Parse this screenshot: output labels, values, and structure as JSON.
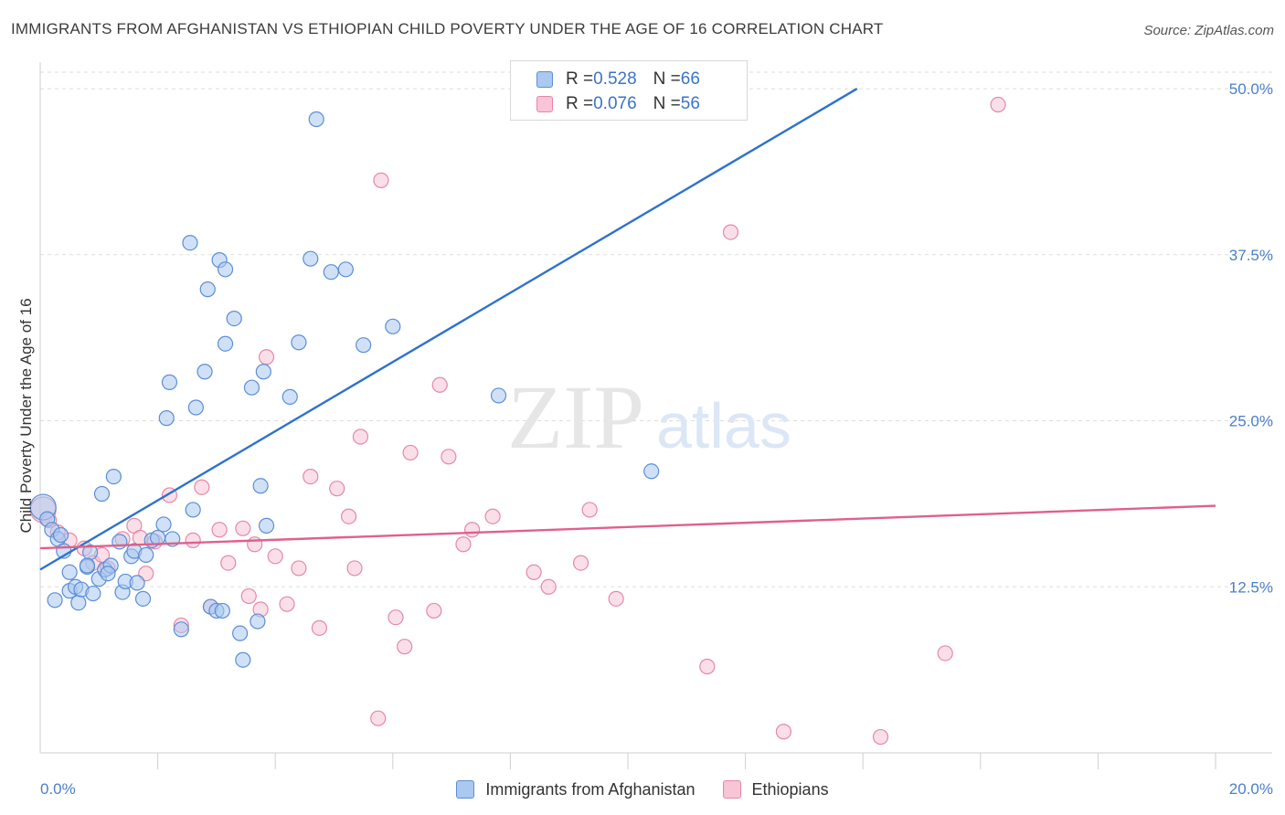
{
  "title": "IMMIGRANTS FROM AFGHANISTAN VS ETHIOPIAN CHILD POVERTY UNDER THE AGE OF 16 CORRELATION CHART",
  "source": "Source: ZipAtlas.com",
  "watermark": {
    "zip": "ZIP",
    "atlas": "atlas"
  },
  "colors": {
    "afghan_fill": "#aac8f0",
    "afghan_stroke": "#5b8ed6",
    "afghan_line": "#2e72cc",
    "ethiopian_fill": "#f8c4d6",
    "ethiopian_stroke": "#e588a8",
    "ethiopian_line": "#e0608c",
    "tick_text": "#4a7fc8",
    "grid": "#dddddd"
  },
  "legend": {
    "rows": [
      {
        "r_label": "R = ",
        "r_value": "0.528",
        "n_label": "N = ",
        "n_value": "66"
      },
      {
        "r_label": "R = ",
        "r_value": "0.076",
        "n_label": "N = ",
        "n_value": "56"
      }
    ]
  },
  "bottom_legend": {
    "items": [
      "Immigrants from Afghanistan",
      "Ethiopians"
    ]
  },
  "chart_data": {
    "type": "scatter",
    "ylabel": "Child Poverty Under the Age of 16",
    "xlim": [
      0,
      20
    ],
    "ylim": [
      0,
      52
    ],
    "x_tick_labels": [
      {
        "value": 0,
        "label": "0.0%"
      },
      {
        "value": 20,
        "label": "20.0%"
      }
    ],
    "x_minor_ticks": [
      2,
      4,
      6,
      8,
      10,
      12,
      14,
      16,
      18,
      20
    ],
    "y_ticks": [
      {
        "value": 12.5,
        "label": "12.5%"
      },
      {
        "value": 25,
        "label": "25.0%"
      },
      {
        "value": 37.5,
        "label": "37.5%"
      },
      {
        "value": 50,
        "label": "50.0%"
      }
    ],
    "grid": true,
    "series": [
      {
        "name": "Immigrants from Afghanistan",
        "trend": {
          "x0": 0,
          "y0": 13.8,
          "x1": 13.9,
          "y1": 50.0
        },
        "points": [
          [
            0.05,
            18.5
          ],
          [
            0.12,
            17.6
          ],
          [
            0.2,
            16.8
          ],
          [
            0.3,
            16.1
          ],
          [
            0.4,
            15.2
          ],
          [
            0.5,
            13.6
          ],
          [
            0.25,
            11.5
          ],
          [
            0.5,
            12.2
          ],
          [
            0.6,
            12.5
          ],
          [
            0.65,
            11.3
          ],
          [
            0.7,
            12.3
          ],
          [
            0.8,
            14.0
          ],
          [
            0.85,
            15.1
          ],
          [
            0.9,
            12.0
          ],
          [
            1.0,
            13.1
          ],
          [
            1.05,
            19.5
          ],
          [
            1.1,
            13.8
          ],
          [
            1.2,
            14.1
          ],
          [
            1.25,
            20.8
          ],
          [
            1.35,
            15.9
          ],
          [
            1.4,
            12.1
          ],
          [
            1.45,
            12.9
          ],
          [
            1.55,
            14.8
          ],
          [
            1.6,
            15.2
          ],
          [
            1.65,
            12.8
          ],
          [
            1.75,
            11.6
          ],
          [
            1.8,
            14.9
          ],
          [
            1.9,
            16.0
          ],
          [
            2.0,
            16.2
          ],
          [
            2.1,
            17.2
          ],
          [
            2.15,
            25.2
          ],
          [
            2.2,
            27.9
          ],
          [
            2.25,
            16.1
          ],
          [
            2.4,
            9.3
          ],
          [
            2.55,
            38.4
          ],
          [
            2.6,
            18.3
          ],
          [
            2.65,
            26.0
          ],
          [
            2.8,
            28.7
          ],
          [
            2.85,
            34.9
          ],
          [
            2.9,
            11.0
          ],
          [
            3.0,
            10.7
          ],
          [
            3.05,
            37.1
          ],
          [
            3.1,
            10.7
          ],
          [
            3.15,
            36.4
          ],
          [
            3.15,
            30.8
          ],
          [
            3.3,
            32.7
          ],
          [
            3.4,
            9.0
          ],
          [
            3.45,
            7.0
          ],
          [
            3.6,
            27.5
          ],
          [
            3.7,
            9.9
          ],
          [
            3.75,
            20.1
          ],
          [
            3.8,
            28.7
          ],
          [
            3.85,
            17.1
          ],
          [
            4.25,
            26.8
          ],
          [
            4.4,
            30.9
          ],
          [
            4.6,
            37.2
          ],
          [
            4.7,
            47.7
          ],
          [
            4.95,
            36.2
          ],
          [
            5.2,
            36.4
          ],
          [
            5.5,
            30.7
          ],
          [
            6.0,
            32.1
          ],
          [
            7.8,
            26.9
          ],
          [
            10.4,
            21.2
          ],
          [
            0.8,
            14.1
          ],
          [
            1.15,
            13.5
          ],
          [
            0.35,
            16.4
          ]
        ]
      },
      {
        "name": "Ethiopians",
        "trend": {
          "x0": 0,
          "y0": 15.4,
          "x1": 20.0,
          "y1": 18.6
        },
        "points": [
          [
            0.05,
            18.3
          ],
          [
            0.15,
            17.5
          ],
          [
            0.3,
            16.6
          ],
          [
            0.5,
            16.0
          ],
          [
            0.75,
            15.4
          ],
          [
            0.9,
            14.3
          ],
          [
            1.05,
            14.9
          ],
          [
            1.15,
            13.9
          ],
          [
            1.4,
            16.1
          ],
          [
            1.6,
            17.1
          ],
          [
            1.7,
            16.2
          ],
          [
            1.8,
            13.5
          ],
          [
            1.95,
            15.9
          ],
          [
            2.2,
            19.4
          ],
          [
            2.4,
            9.6
          ],
          [
            2.6,
            16.0
          ],
          [
            2.75,
            20.0
          ],
          [
            2.9,
            11.0
          ],
          [
            3.05,
            16.8
          ],
          [
            3.2,
            14.3
          ],
          [
            3.45,
            16.9
          ],
          [
            3.55,
            11.8
          ],
          [
            3.65,
            15.7
          ],
          [
            3.75,
            10.8
          ],
          [
            3.85,
            29.8
          ],
          [
            4.0,
            14.8
          ],
          [
            4.2,
            11.2
          ],
          [
            4.4,
            13.9
          ],
          [
            4.6,
            20.8
          ],
          [
            4.75,
            9.4
          ],
          [
            5.05,
            19.9
          ],
          [
            5.25,
            17.8
          ],
          [
            5.35,
            13.9
          ],
          [
            5.45,
            23.8
          ],
          [
            5.75,
            2.6
          ],
          [
            5.8,
            43.1
          ],
          [
            6.05,
            10.2
          ],
          [
            6.2,
            8.0
          ],
          [
            6.3,
            22.6
          ],
          [
            6.7,
            10.7
          ],
          [
            6.8,
            27.7
          ],
          [
            6.95,
            22.3
          ],
          [
            7.2,
            15.7
          ],
          [
            7.35,
            16.8
          ],
          [
            7.7,
            17.8
          ],
          [
            8.4,
            13.6
          ],
          [
            8.65,
            12.5
          ],
          [
            9.2,
            14.3
          ],
          [
            9.35,
            18.3
          ],
          [
            9.8,
            11.6
          ],
          [
            11.35,
            6.5
          ],
          [
            11.75,
            39.2
          ],
          [
            12.65,
            1.6
          ],
          [
            14.3,
            1.2
          ],
          [
            15.4,
            7.5
          ],
          [
            16.3,
            48.8
          ]
        ]
      }
    ]
  }
}
